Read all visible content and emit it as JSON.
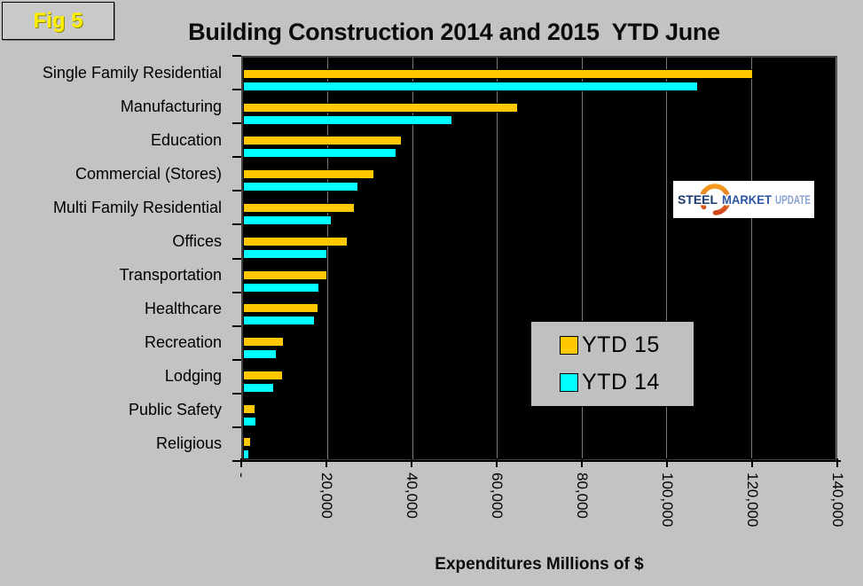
{
  "figure_label": "Fig 5",
  "title": "Building Construction 2014 and 2015  YTD June",
  "x_axis_title": "Expenditures Millions of $",
  "legend": {
    "items": [
      {
        "label": "YTD 15",
        "color": "#ffc800"
      },
      {
        "label": "YTD 14",
        "color": "#00ffff"
      }
    ]
  },
  "logo": {
    "words": [
      {
        "text": "STEEL",
        "color": "#1a3a6b"
      },
      {
        "text": "MARKET",
        "color": "#2b55a5"
      },
      {
        "text": "UPDATE",
        "color": "#8aa4d6"
      }
    ]
  },
  "colors": {
    "page_background": "#c3c3c3",
    "plot_background": "#000000",
    "gridline": "#7a7a7a",
    "ytd15_bar": "#ffc800",
    "ytd14_bar": "#00ffff",
    "fig_label_text": "#ffee00",
    "legend_background": "#c0c0c0"
  },
  "chart_data": {
    "type": "bar",
    "orientation": "horizontal",
    "title": "Building Construction 2014 and 2015  YTD June",
    "xlabel": "Expenditures Millions of $",
    "xlim": [
      0,
      140000
    ],
    "grid": true,
    "legend_position": "inside-right",
    "categories": [
      "Single Family Residential",
      "Manufacturing",
      "Education",
      "Commercial (Stores)",
      "Multi Family Residential",
      "Offices",
      "Transportation",
      "Healthcare",
      "Recreation",
      "Lodging",
      "Public Safety",
      "Religious"
    ],
    "series": [
      {
        "name": "YTD 15",
        "color": "#ffc800",
        "values": [
          120500,
          65000,
          37500,
          31000,
          26500,
          24700,
          20000,
          17800,
          9600,
          9500,
          2900,
          1800
        ]
      },
      {
        "name": "YTD 14",
        "color": "#00ffff",
        "values": [
          107500,
          49500,
          36200,
          27300,
          21000,
          20000,
          18100,
          16900,
          7900,
          7400,
          3200,
          1500
        ]
      }
    ],
    "x_ticks": [
      {
        "value": 0,
        "label": "-"
      },
      {
        "value": 20000,
        "label": "20,000"
      },
      {
        "value": 40000,
        "label": "40,000"
      },
      {
        "value": 60000,
        "label": "60,000"
      },
      {
        "value": 80000,
        "label": "80,000"
      },
      {
        "value": 100000,
        "label": "100,000"
      },
      {
        "value": 120000,
        "label": "120,000"
      },
      {
        "value": 140000,
        "label": "140,000"
      }
    ]
  }
}
